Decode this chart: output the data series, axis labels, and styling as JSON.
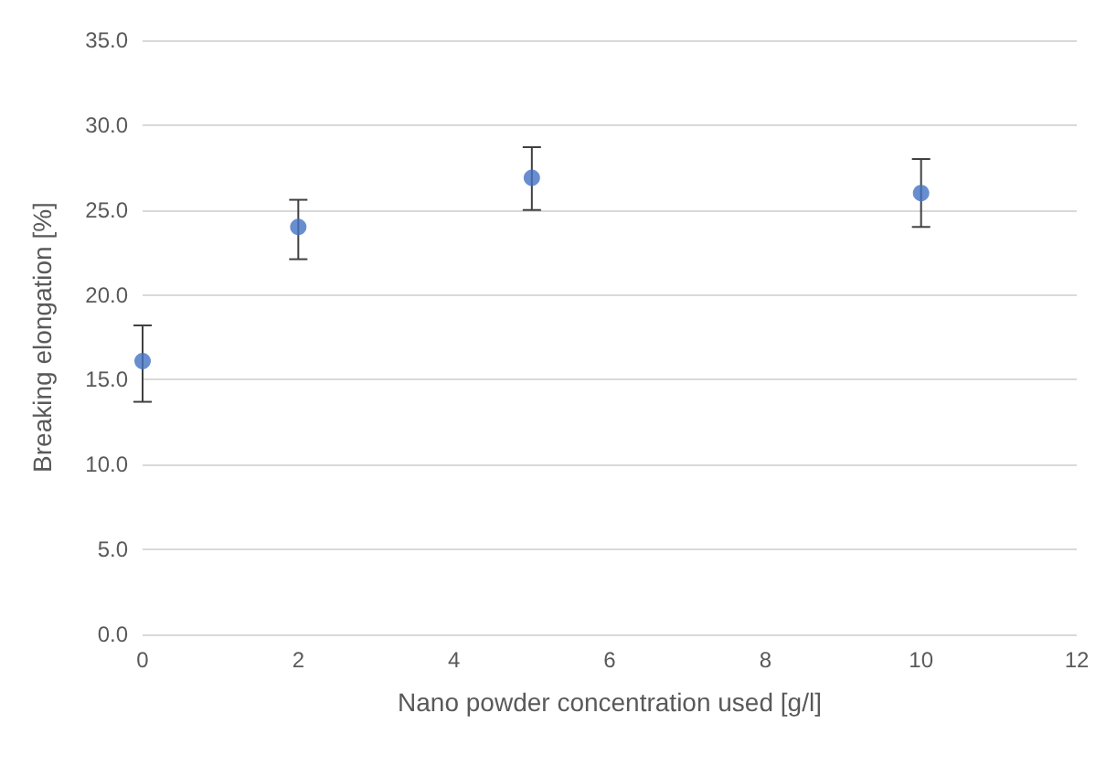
{
  "chart_data": {
    "type": "scatter",
    "xlabel": "Nano powder concentration used [g/l]",
    "ylabel": "Breaking elongation [%]",
    "x": [
      0,
      2,
      5,
      10
    ],
    "values": [
      16.1,
      24.0,
      26.9,
      26.0
    ],
    "errors": [
      [
        13.7,
        18.2
      ],
      [
        22.1,
        25.6
      ],
      [
        25.0,
        28.7
      ],
      [
        24.0,
        28.0
      ]
    ],
    "color": "#4472c4",
    "xlim": [
      0,
      12
    ],
    "xticks": [
      0,
      2,
      4,
      6,
      8,
      10,
      12
    ],
    "ylim": [
      0,
      35
    ],
    "yticks": [
      {
        "value": 0,
        "label": "0.0"
      },
      {
        "value": 5,
        "label": "5.0"
      },
      {
        "value": 10,
        "label": "10.0"
      },
      {
        "value": 15,
        "label": "15.0"
      },
      {
        "value": 20,
        "label": "20.0"
      },
      {
        "value": 25,
        "label": "25.0"
      },
      {
        "value": 30,
        "label": "30.0"
      },
      {
        "value": 35,
        "label": "35.0"
      }
    ],
    "grid": "y",
    "marker": "circle"
  }
}
